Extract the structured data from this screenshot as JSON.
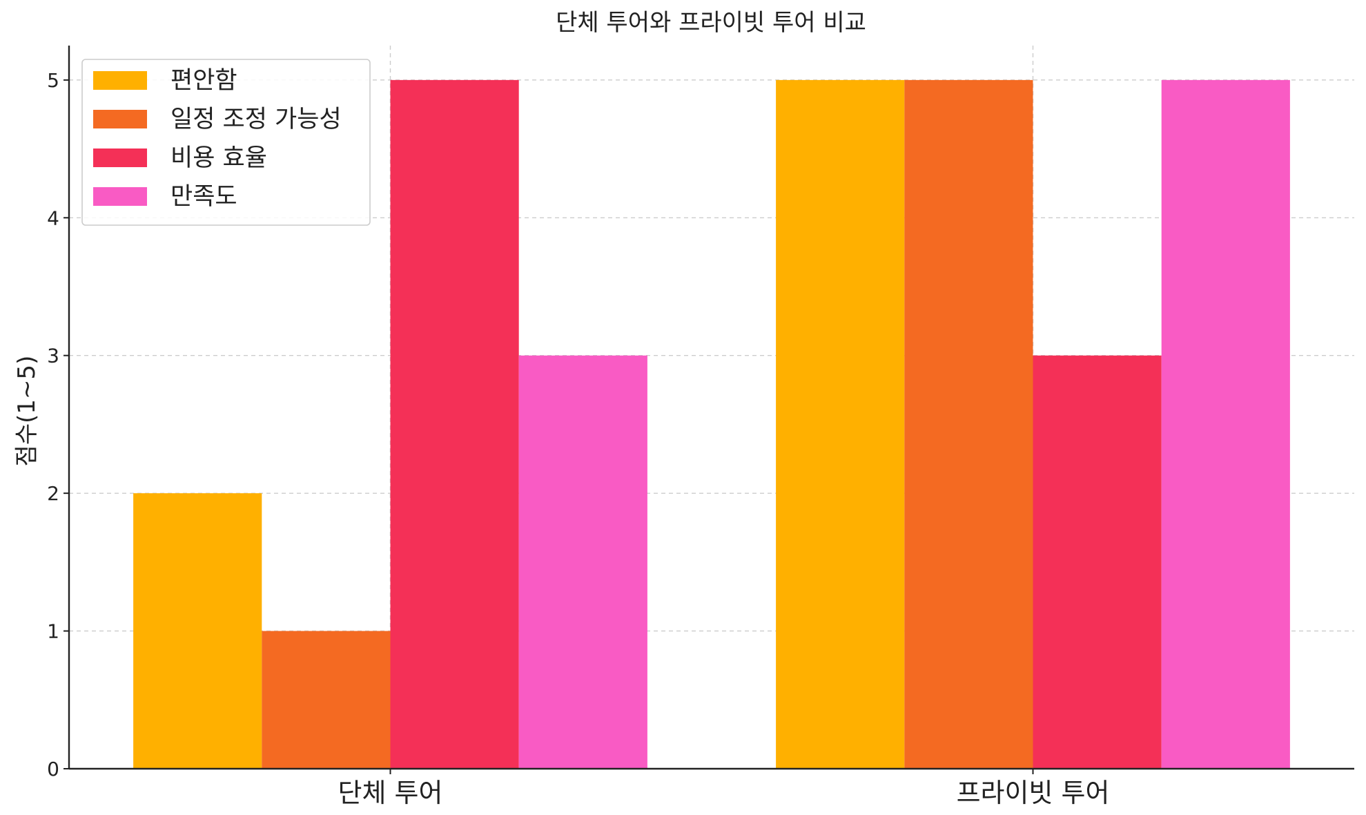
{
  "chart_data": {
    "type": "bar",
    "title": "단체 투어와 프라이빗 투어 비교",
    "ylabel": "점수(1~5)",
    "xlabel": "",
    "categories": [
      "단체 투어",
      "프라이빗 투어"
    ],
    "series": [
      {
        "name": "편안함",
        "color": "#FFB000",
        "values": [
          2,
          5
        ]
      },
      {
        "name": "일정 조정 가능성",
        "color": "#F46A22",
        "values": [
          1,
          5
        ]
      },
      {
        "name": "비용 효율",
        "color": "#F43057",
        "values": [
          5,
          3
        ]
      },
      {
        "name": "만족도",
        "color": "#F95BC4",
        "values": [
          3,
          5
        ]
      }
    ],
    "ylim": [
      0,
      5.25
    ],
    "yticks": [
      "0",
      "1",
      "2",
      "3",
      "4",
      "5"
    ],
    "grid": true,
    "legend": "top-left"
  }
}
